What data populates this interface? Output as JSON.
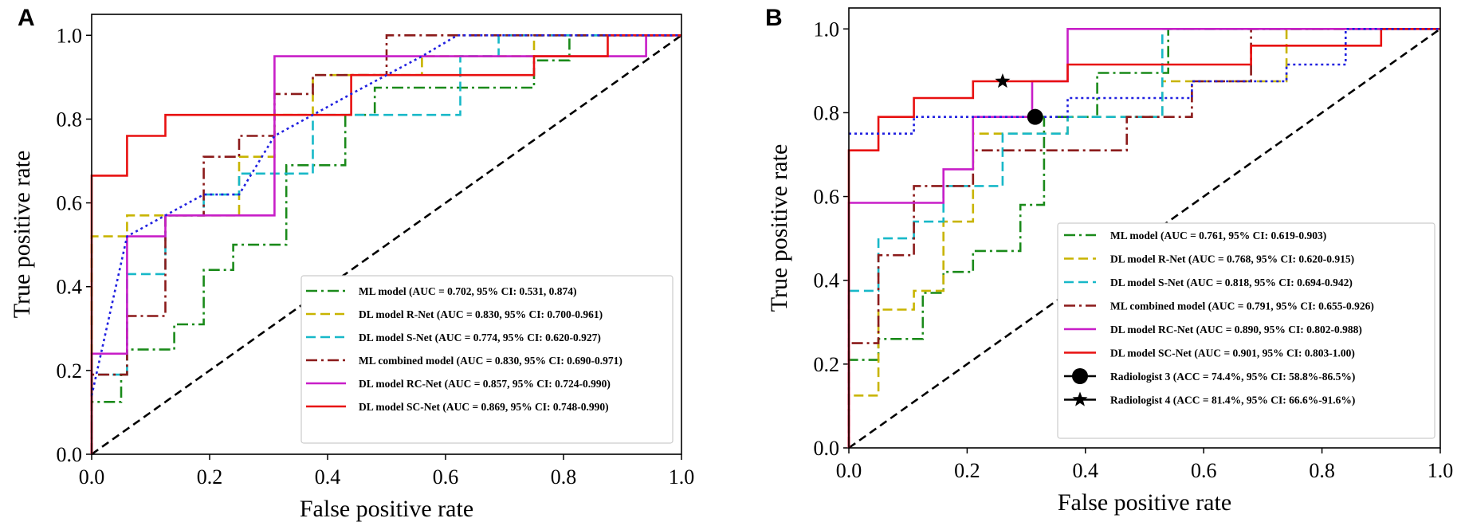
{
  "chart_data": [
    {
      "panel": "A",
      "type": "line",
      "xlabel": "False positive rate",
      "ylabel": "True positive rate",
      "xlim": [
        0,
        1
      ],
      "ylim": [
        0,
        1.05
      ],
      "xticks": [
        "0.0",
        "0.2",
        "0.4",
        "0.6",
        "0.8",
        "1.0"
      ],
      "yticks": [
        "0.0",
        "0.2",
        "0.4",
        "0.6",
        "0.8",
        "1.0"
      ],
      "legend_position": "lower-right",
      "diagonal": true,
      "series": [
        {
          "name": "ML model (AUC = 0.702, 95% CI: 0.531, 0.874)",
          "color": "#1a8a1a",
          "dash": "dashdot",
          "x": [
            0,
            0,
            0.05,
            0.05,
            0.06,
            0.06,
            0.14,
            0.14,
            0.19,
            0.19,
            0.24,
            0.24,
            0.33,
            0.33,
            0.43,
            0.43,
            0.48,
            0.48,
            0.75,
            0.75,
            0.81,
            0.81,
            1.0
          ],
          "y": [
            0,
            0.125,
            0.125,
            0.19,
            0.19,
            0.25,
            0.25,
            0.31,
            0.31,
            0.44,
            0.44,
            0.5,
            0.5,
            0.69,
            0.69,
            0.81,
            0.81,
            0.875,
            0.875,
            0.94,
            0.94,
            1.0,
            1.0
          ]
        },
        {
          "name": "DL model R-Net (AUC = 0.830, 95% CI: 0.700-0.961)",
          "color": "#c8b400",
          "dash": "dashed",
          "x": [
            0,
            0,
            0.06,
            0.06,
            0.125,
            0.125,
            0.25,
            0.25,
            0.31,
            0.31,
            0.375,
            0.375,
            0.56,
            0.56,
            0.75,
            0.75,
            1.0
          ],
          "y": [
            0,
            0.52,
            0.52,
            0.57,
            0.57,
            0.57,
            0.57,
            0.71,
            0.71,
            0.81,
            0.81,
            0.905,
            0.905,
            0.95,
            0.95,
            1.0,
            1.0
          ]
        },
        {
          "name": "DL model S-Net (AUC = 0.774, 95% CI: 0.620-0.927)",
          "color": "#17b8c8",
          "dash": "dashed",
          "x": [
            0,
            0,
            0.06,
            0.06,
            0.125,
            0.125,
            0.19,
            0.19,
            0.25,
            0.25,
            0.375,
            0.375,
            0.625,
            0.625,
            0.69,
            0.69,
            1.0
          ],
          "y": [
            0,
            0.19,
            0.19,
            0.43,
            0.43,
            0.57,
            0.57,
            0.62,
            0.62,
            0.67,
            0.67,
            0.81,
            0.81,
            0.95,
            0.95,
            1.0,
            1.0
          ]
        },
        {
          "name": "ML combined model (AUC = 0.830, 95% CI: 0.690-0.971)",
          "color": "#8b1a1a",
          "dash": "dashdot",
          "x": [
            0,
            0,
            0.06,
            0.06,
            0.125,
            0.125,
            0.19,
            0.19,
            0.25,
            0.25,
            0.31,
            0.31,
            0.375,
            0.375,
            0.5,
            0.5,
            1.0
          ],
          "y": [
            0,
            0.19,
            0.19,
            0.33,
            0.33,
            0.57,
            0.57,
            0.71,
            0.71,
            0.76,
            0.76,
            0.86,
            0.86,
            0.905,
            0.905,
            1.0,
            1.0
          ]
        },
        {
          "name": "DL model RC-Net (AUC = 0.857, 95% CI: 0.724-0.990)",
          "color": "#c81ec8",
          "dash": "solid",
          "x": [
            0,
            0,
            0.06,
            0.06,
            0.125,
            0.125,
            0.31,
            0.31,
            0.94,
            0.94,
            1.0
          ],
          "y": [
            0,
            0.24,
            0.24,
            0.52,
            0.52,
            0.57,
            0.57,
            0.95,
            0.95,
            1.0,
            1.0
          ]
        },
        {
          "name": "DL model SC-Net (AUC = 0.869,  95% CI: 0.748-0.990)",
          "color": "#e81010",
          "dash": "solid",
          "x": [
            0,
            0,
            0.06,
            0.06,
            0.125,
            0.125,
            0.44,
            0.44,
            0.75,
            0.75,
            0.875,
            0.875,
            1.0
          ],
          "y": [
            0,
            0.665,
            0.665,
            0.76,
            0.76,
            0.81,
            0.81,
            0.905,
            0.905,
            0.95,
            0.95,
            1.0,
            1.0
          ]
        },
        {
          "name": "",
          "color": "#2020e0",
          "dash": "dotted",
          "x": [
            0,
            0.06,
            0.125,
            0.19,
            0.25,
            0.31,
            0.375,
            0.44,
            0.5,
            0.56,
            0.62,
            1.0
          ],
          "y": [
            0.14,
            0.52,
            0.57,
            0.62,
            0.62,
            0.76,
            0.81,
            0.86,
            0.905,
            0.95,
            1.0,
            1.0
          ]
        }
      ],
      "legend": [
        "ML model (AUC = 0.702, 95% CI: 0.531, 0.874)",
        "DL model R-Net (AUC = 0.830, 95% CI: 0.700-0.961)",
        "DL model S-Net (AUC = 0.774, 95% CI: 0.620-0.927)",
        "ML combined model (AUC = 0.830, 95% CI: 0.690-0.971)",
        "DL model RC-Net (AUC = 0.857, 95% CI: 0.724-0.990)",
        "DL model SC-Net (AUC = 0.869,  95% CI: 0.748-0.990)"
      ]
    },
    {
      "panel": "B",
      "type": "line",
      "xlabel": "False positive rate",
      "ylabel": "True positive rate",
      "xlim": [
        0,
        1
      ],
      "ylim": [
        0,
        1.05
      ],
      "xticks": [
        "0.0",
        "0.2",
        "0.4",
        "0.6",
        "0.8",
        "1.0"
      ],
      "yticks": [
        "0.0",
        "0.2",
        "0.4",
        "0.6",
        "0.8",
        "1.0"
      ],
      "legend_position": "lower-right",
      "diagonal": true,
      "series": [
        {
          "name": "ML model (AUC = 0.761, 95% CI: 0.619-0.903)",
          "color": "#1a8a1a",
          "dash": "dashdot",
          "x": [
            0,
            0,
            0.05,
            0.05,
            0.125,
            0.125,
            0.16,
            0.16,
            0.21,
            0.21,
            0.29,
            0.29,
            0.33,
            0.33,
            0.42,
            0.42,
            0.54,
            0.54,
            1.0
          ],
          "y": [
            0,
            0.21,
            0.21,
            0.26,
            0.26,
            0.37,
            0.37,
            0.42,
            0.42,
            0.47,
            0.47,
            0.58,
            0.58,
            0.79,
            0.79,
            0.895,
            0.895,
            1.0,
            1.0
          ]
        },
        {
          "name": "DL model R-Net (AUC = 0.768, 95% CI: 0.620-0.915)",
          "color": "#c8b400",
          "dash": "dashed",
          "x": [
            0,
            0,
            0.05,
            0.05,
            0.11,
            0.11,
            0.16,
            0.16,
            0.21,
            0.21,
            0.37,
            0.37,
            0.53,
            0.53,
            0.74,
            0.74,
            1.0
          ],
          "y": [
            0,
            0.125,
            0.125,
            0.33,
            0.33,
            0.375,
            0.375,
            0.54,
            0.54,
            0.75,
            0.75,
            0.79,
            0.79,
            0.875,
            0.875,
            1.0,
            1.0
          ]
        },
        {
          "name": "DL model S-Net (AUC = 0.818, 95% CI: 0.694-0.942)",
          "color": "#17b8c8",
          "dash": "dashed",
          "x": [
            0,
            0,
            0.05,
            0.05,
            0.11,
            0.11,
            0.16,
            0.16,
            0.26,
            0.26,
            0.37,
            0.37,
            0.53,
            0.53,
            1.0
          ],
          "y": [
            0,
            0.375,
            0.375,
            0.5,
            0.5,
            0.54,
            0.54,
            0.625,
            0.625,
            0.75,
            0.75,
            0.79,
            0.79,
            1.0,
            1.0
          ]
        },
        {
          "name": "ML combined model (AUC = 0.791, 95% CI: 0.655-0.926)",
          "color": "#8b1a1a",
          "dash": "dashdot",
          "x": [
            0,
            0,
            0.05,
            0.05,
            0.11,
            0.11,
            0.21,
            0.21,
            0.47,
            0.47,
            0.58,
            0.58,
            0.68,
            0.68,
            1.0
          ],
          "y": [
            0,
            0.25,
            0.25,
            0.46,
            0.46,
            0.625,
            0.625,
            0.71,
            0.71,
            0.79,
            0.79,
            0.875,
            0.875,
            1.0,
            1.0
          ]
        },
        {
          "name": "DL model RC-Net (AUC = 0.890, 95% CI: 0.802-0.988)",
          "color": "#c81ec8",
          "dash": "solid",
          "x": [
            0,
            0,
            0.16,
            0.16,
            0.21,
            0.21,
            0.31,
            0.31,
            0.37,
            0.37,
            1.0
          ],
          "y": [
            0,
            0.585,
            0.585,
            0.665,
            0.665,
            0.79,
            0.79,
            0.875,
            0.875,
            1.0,
            1.0
          ]
        },
        {
          "name": "DL model SC-Net (AUC = 0.901, 95% CI: 0.803-1.00)",
          "color": "#e81010",
          "dash": "solid",
          "x": [
            0,
            0,
            0.05,
            0.05,
            0.11,
            0.11,
            0.21,
            0.21,
            0.37,
            0.37,
            0.68,
            0.68,
            0.9,
            0.9,
            1.0
          ],
          "y": [
            0,
            0.71,
            0.71,
            0.79,
            0.79,
            0.835,
            0.835,
            0.875,
            0.875,
            0.915,
            0.915,
            0.96,
            0.96,
            1.0,
            1.0
          ]
        },
        {
          "name": "",
          "color": "#2020e0",
          "dash": "dotted",
          "x": [
            0,
            0.11,
            0.11,
            0.37,
            0.37,
            0.58,
            0.58,
            0.74,
            0.74,
            0.84,
            0.84,
            1.0
          ],
          "y": [
            0.75,
            0.75,
            0.79,
            0.79,
            0.835,
            0.835,
            0.875,
            0.875,
            0.915,
            0.915,
            1.0,
            1.0
          ]
        }
      ],
      "points": [
        {
          "name": "Radiologist 3 (ACC = 74.4%, 95% CI: 58.8%-86.5%)",
          "marker": "circle",
          "x": 0.315,
          "y": 0.79
        },
        {
          "name": "Radiologist 4 (ACC = 81.4%, 95% CI: 66.6%-91.6%)",
          "marker": "star",
          "x": 0.26,
          "y": 0.875
        }
      ],
      "legend": [
        "ML model (AUC = 0.761, 95% CI: 0.619-0.903)",
        "DL model R-Net (AUC = 0.768, 95% CI: 0.620-0.915)",
        "DL model S-Net (AUC = 0.818, 95% CI: 0.694-0.942)",
        "ML combined model (AUC = 0.791, 95% CI: 0.655-0.926)",
        "DL model RC-Net (AUC = 0.890, 95% CI: 0.802-0.988)",
        "DL model SC-Net (AUC = 0.901, 95% CI: 0.803-1.00)",
        "Radiologist 3 (ACC = 74.4%, 95% CI: 58.8%-86.5%)",
        "Radiologist 4 (ACC = 81.4%, 95% CI: 66.6%-91.6%)"
      ]
    }
  ]
}
